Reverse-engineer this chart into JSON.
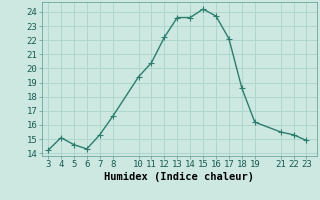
{
  "x": [
    3,
    4,
    5,
    6,
    7,
    8,
    10,
    11,
    12,
    13,
    14,
    15,
    16,
    17,
    18,
    19,
    21,
    22,
    23
  ],
  "y": [
    14.2,
    15.1,
    14.6,
    14.3,
    15.3,
    16.6,
    19.4,
    20.4,
    22.2,
    23.6,
    23.6,
    24.2,
    23.7,
    22.1,
    18.6,
    16.2,
    15.5,
    15.3,
    14.9
  ],
  "xlabel": "Humidex (Indice chaleur)",
  "xlim": [
    2.5,
    23.8
  ],
  "ylim": [
    13.8,
    24.7
  ],
  "yticks": [
    14,
    15,
    16,
    17,
    18,
    19,
    20,
    21,
    22,
    23,
    24
  ],
  "xticks": [
    3,
    4,
    5,
    6,
    7,
    8,
    10,
    11,
    12,
    13,
    14,
    15,
    16,
    17,
    18,
    19,
    21,
    22,
    23
  ],
  "line_color": "#2d7d6f",
  "marker_color": "#2d7d6f",
  "bg_color": "#cce8e0",
  "grid_color": "#aad4ca",
  "tick_label_color": "#1a5a52",
  "xlabel_color": "#000000",
  "xlabel_fontsize": 7.5,
  "tick_fontsize": 6.5,
  "line_width": 1.0,
  "marker_size": 2.5
}
